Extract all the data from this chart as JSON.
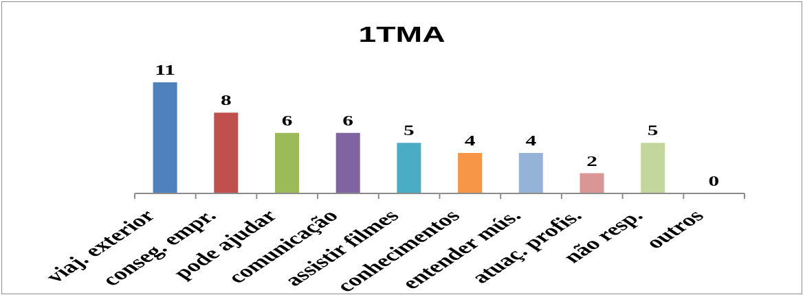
{
  "chart_data": {
    "type": "bar",
    "title": "1TMA",
    "categories": [
      "viaj. exterior",
      "conseg. empr.",
      "pode ajudar",
      "comunicação",
      "assistir filmes",
      "conhecimentos",
      "entender mús.",
      "atuaç. profis.",
      "não resp.",
      "outros"
    ],
    "values": [
      11,
      8,
      6,
      6,
      5,
      4,
      4,
      2,
      5,
      0
    ],
    "colors": [
      "#4f81bd",
      "#c0504d",
      "#9bbb59",
      "#8064a2",
      "#4bacc6",
      "#f79646",
      "#95b3d7",
      "#d99694",
      "#c3d69b",
      "#8e84b5"
    ],
    "data_labels": true
  }
}
